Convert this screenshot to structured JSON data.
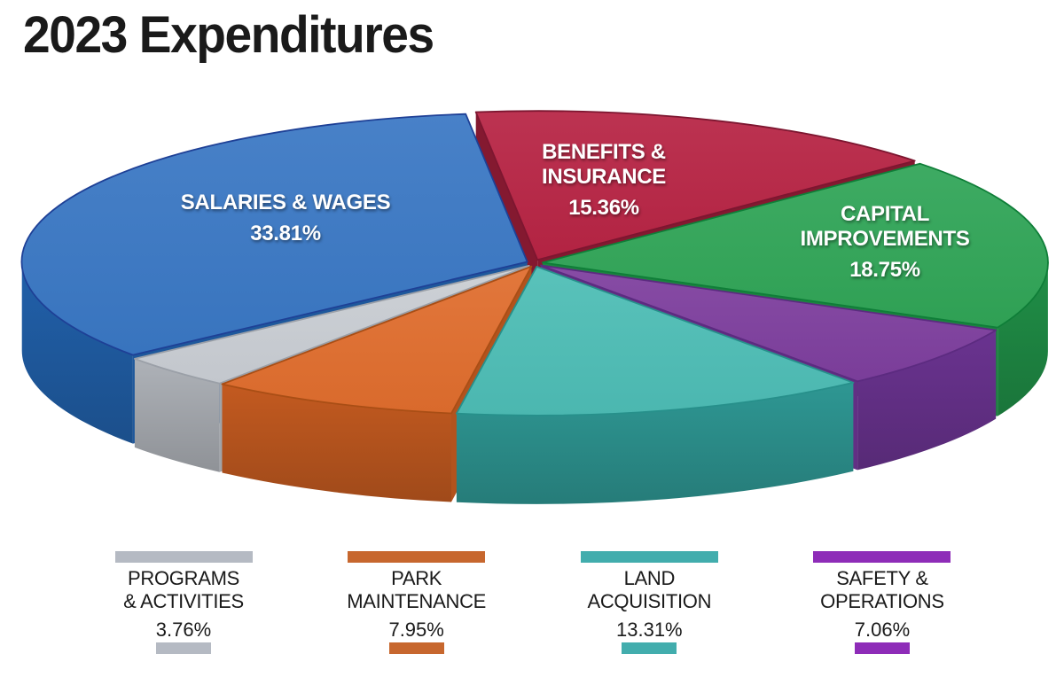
{
  "title": "2023 Expenditures",
  "chart_data": {
    "type": "pie",
    "title": "2023 Expenditures",
    "style": "3d-exploded",
    "start_angle_deg": 263,
    "direction": "clockwise",
    "slices": [
      {
        "id": "benefits",
        "label": "BENEFITS & INSURANCE",
        "label_lines": [
          "BENEFITS &",
          "INSURANCE"
        ],
        "value": 15.36,
        "pct_label": "15.36%",
        "color": "#B72444",
        "side_color": "#8F1B34",
        "edge_color": "#7D1630",
        "label_on": "pie"
      },
      {
        "id": "capital",
        "label": "CAPITAL IMPROVEMENTS",
        "label_lines": [
          "CAPITAL",
          "IMPROVEMENTS"
        ],
        "value": 18.75,
        "pct_label": "18.75%",
        "color": "#30A557",
        "side_color": "#208F47",
        "edge_color": "#0F7E38",
        "label_on": "pie"
      },
      {
        "id": "safety",
        "label": "SAFETY & OPERATIONS",
        "label_lines": [
          "SAFETY &",
          "OPERATIONS"
        ],
        "value": 7.06,
        "pct_label": "7.06%",
        "color": "#7E3F9E",
        "side_color": "#6A3390",
        "edge_color": "#5C2B80",
        "label_on": "legend",
        "legend_color": "#8E2CB8"
      },
      {
        "id": "land",
        "label": "LAND ACQUISITION",
        "label_lines": [
          "LAND",
          "ACQUISITION"
        ],
        "value": 13.31,
        "pct_label": "13.31%",
        "color": "#4DBDB5",
        "side_color": "#2E9793",
        "edge_color": "#27908B",
        "label_on": "legend",
        "legend_color": "#42ADAD"
      },
      {
        "id": "park",
        "label": "PARK MAINTENANCE",
        "label_lines": [
          "PARK",
          "MAINTENANCE"
        ],
        "value": 7.95,
        "pct_label": "7.95%",
        "color": "#E06D2D",
        "side_color": "#C35A20",
        "edge_color": "#A94E15",
        "label_on": "legend",
        "legend_color": "#C7672E"
      },
      {
        "id": "programs",
        "label": "PROGRAMS & ACTIVITIES",
        "label_lines": [
          "PROGRAMS",
          "& ACTIVITIES"
        ],
        "value": 3.76,
        "pct_label": "3.76%",
        "color": "#C9CDD3",
        "side_color": "#AEB2B8",
        "edge_color": "#9BA0A8",
        "label_on": "legend",
        "legend_color": "#B5BAC3"
      },
      {
        "id": "salaries",
        "label": "SALARIES & WAGES",
        "label_lines": [
          "SALARIES & WAGES"
        ],
        "value": 33.81,
        "pct_label": "33.81%",
        "color": "#3A78C4",
        "side_color": "#2160AA",
        "edge_color": "#1E4096",
        "label_on": "pie"
      }
    ],
    "legend_order": [
      "programs",
      "park",
      "land",
      "safety"
    ],
    "grid": false,
    "legend_position": "bottom"
  }
}
